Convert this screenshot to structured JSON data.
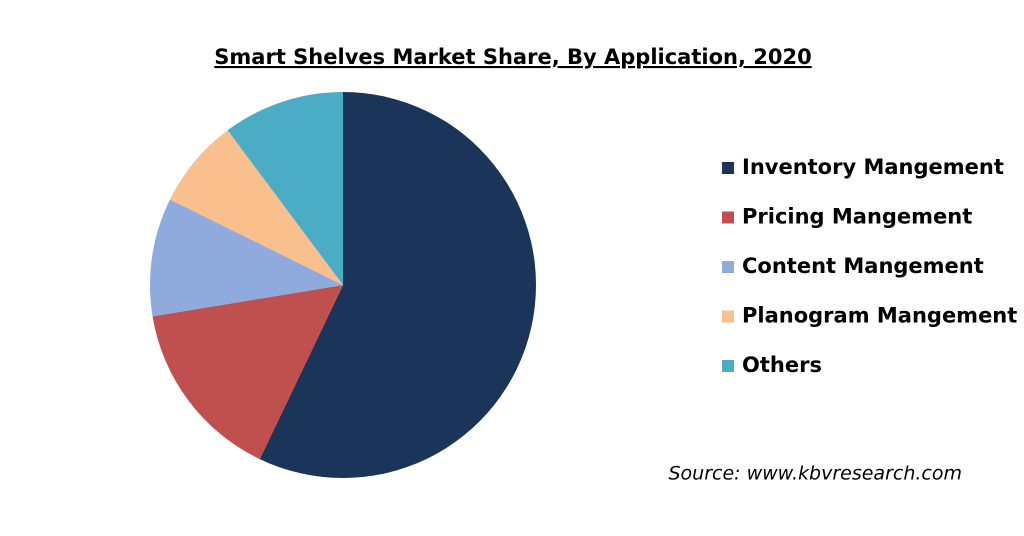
{
  "chart_data": {
    "type": "pie",
    "title": "Smart Shelves Market Share, By Application, 2020",
    "categories": [
      "Inventory Mangement",
      "Pricing Mangement",
      "Content Mangement",
      "Planogram Mangement",
      "Others"
    ],
    "values": [
      57.1,
      15.3,
      9.9,
      7.5,
      10.2
    ],
    "colors": [
      "#1b355a",
      "#c0504d",
      "#8faadc",
      "#f9c08e",
      "#4bacc6"
    ],
    "legend": "right",
    "source": "Source: www.kbvresearch.com"
  }
}
